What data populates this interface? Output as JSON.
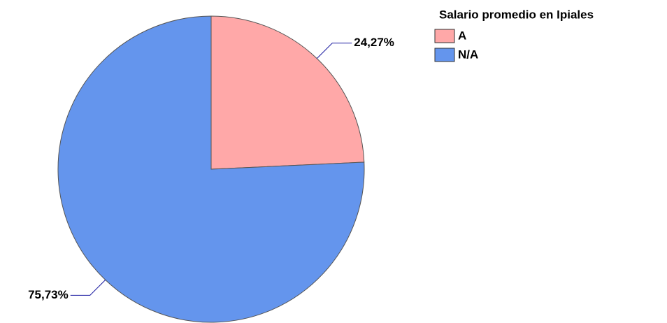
{
  "chart_data": {
    "type": "pie",
    "legend_title": "Salario promedio en Ipiales",
    "categories": [
      "A",
      "N/A"
    ],
    "values": [
      24.27,
      75.73
    ],
    "value_labels": [
      "24,27%",
      "75,73%"
    ],
    "colors": [
      "#ffa8a8",
      "#6495ed"
    ],
    "legend": "top-right"
  }
}
